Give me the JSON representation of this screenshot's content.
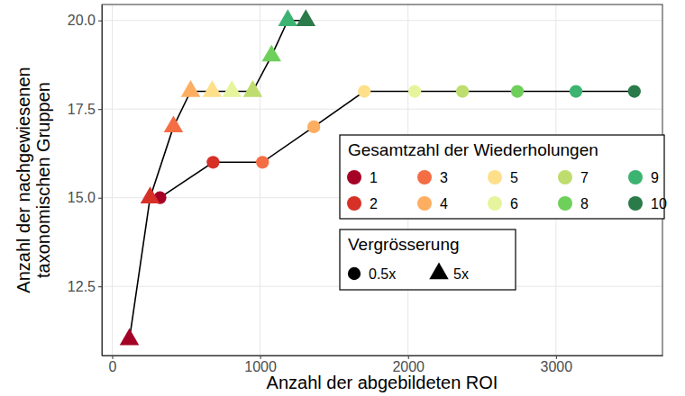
{
  "chart_data": {
    "type": "line",
    "x_label": "Anzahl der abgebildeten ROI",
    "y_label": "Anzahl der nachgewiesenen\ntaxonomischen Gruppen",
    "xlim": [
      -70,
      3720
    ],
    "xticks": [
      0,
      1000,
      2000,
      3000
    ],
    "ylim": [
      10.55,
      20.45
    ],
    "yticks": [
      12.5,
      {
        "value": 15,
        "label": "15.0"
      },
      17.5,
      {
        "value": 20,
        "label": "20.0"
      }
    ],
    "grid": true,
    "series": [
      {
        "name": "0.5x",
        "marker": "circle",
        "color": "#000000",
        "x": [
          323,
          682,
          1016,
          1363,
          1704,
          2045,
          2368,
          2739,
          3135,
          3530
        ],
        "values": [
          15,
          16,
          16,
          17,
          18,
          18,
          18,
          18,
          18,
          18
        ],
        "colors": [
          "#a50026",
          "#d73027",
          "#f46d43",
          "#fdae61",
          "#fee08b",
          "#e6f59d",
          "#bedd6e",
          "#6fcf5b",
          "#3cb371",
          "#2a7a4a"
        ]
      },
      {
        "name": "5x",
        "marker": "triangle",
        "color": "#000000",
        "x": [
          116,
          256,
          414,
          530,
          676,
          809,
          950,
          1077,
          1187,
          1309
        ],
        "values": [
          11,
          15,
          17,
          18,
          18,
          18,
          18,
          19,
          20,
          20
        ],
        "colors": [
          "#a50026",
          "#d73027",
          "#f46d43",
          "#fdae61",
          "#fee08b",
          "#e6f59d",
          "#bedd6e",
          "#6fcf5b",
          "#3cb371",
          "#2a7a4a"
        ]
      }
    ],
    "color_legend": {
      "title": "Gesamtzahl der Wiederholungen",
      "labels": [
        1,
        2,
        3,
        4,
        5,
        6,
        7,
        8,
        9,
        10
      ],
      "colors": [
        "#a50026",
        "#d73027",
        "#f46d43",
        "#fdae61",
        "#fee08b",
        "#e6f59d",
        "#bedd6e",
        "#6fcf5b",
        "#3cb371",
        "#2a7a4a"
      ]
    },
    "shape_legend": {
      "title": "Vergrösserung"
    }
  }
}
